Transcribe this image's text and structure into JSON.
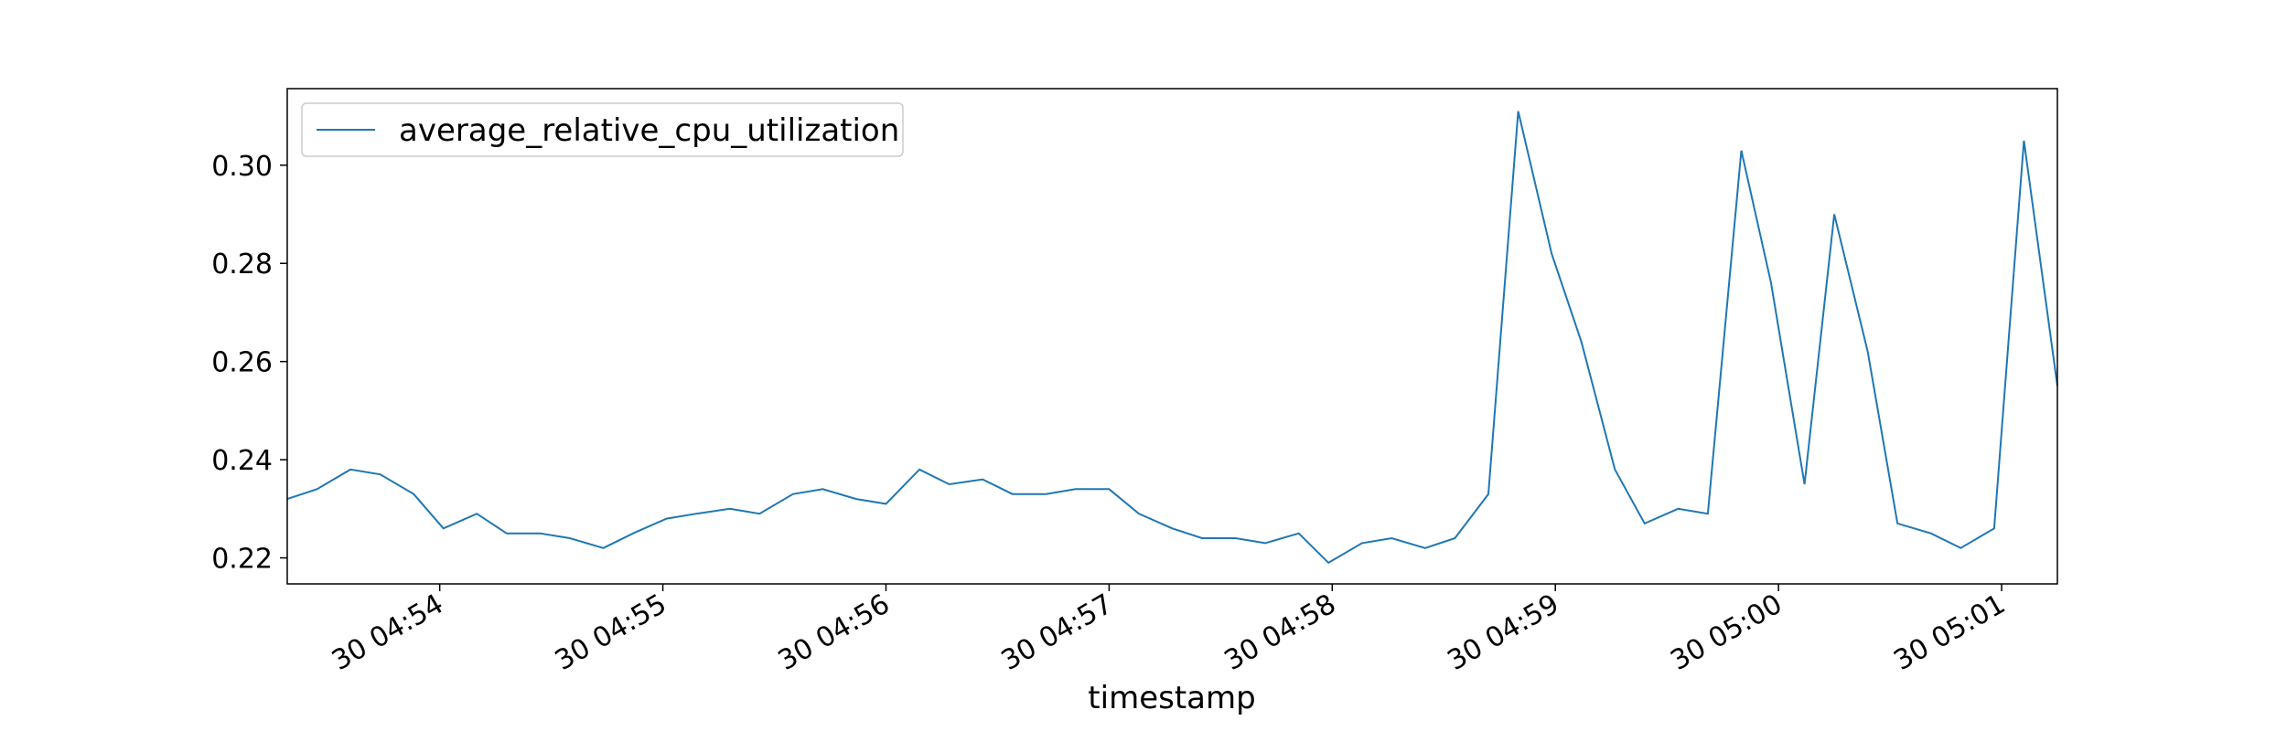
{
  "chart_data": {
    "type": "line",
    "xlabel": "timestamp",
    "x": [
      "30 04:53:19",
      "30 04:53:27",
      "30 04:53:36",
      "30 04:53:44",
      "30 04:53:53",
      "30 04:54:01",
      "30 04:54:10",
      "30 04:54:18",
      "30 04:54:27",
      "30 04:54:35",
      "30 04:54:44",
      "30 04:54:52",
      "30 04:55:01",
      "30 04:55:09",
      "30 04:55:18",
      "30 04:55:26",
      "30 04:55:35",
      "30 04:55:43",
      "30 04:55:52",
      "30 04:56:00",
      "30 04:56:09",
      "30 04:56:17",
      "30 04:56:26",
      "30 04:56:34",
      "30 04:56:43",
      "30 04:56:51",
      "30 04:57:00",
      "30 04:57:08",
      "30 04:57:17",
      "30 04:57:25",
      "30 04:57:34",
      "30 04:57:42",
      "30 04:57:51",
      "30 04:57:59",
      "30 04:58:08",
      "30 04:58:16",
      "30 04:58:25",
      "30 04:58:33",
      "30 04:58:42",
      "30 04:58:50",
      "30 04:58:59",
      "30 04:59:07",
      "30 04:59:16",
      "30 04:59:24",
      "30 04:59:33",
      "30 04:59:41",
      "30 04:59:50",
      "30 04:59:58",
      "30 05:00:07",
      "30 05:00:15",
      "30 05:00:24",
      "30 05:00:32",
      "30 05:00:41",
      "30 05:00:49",
      "30 05:00:58",
      "30 05:01:06",
      "30 05:01:15"
    ],
    "series": [
      {
        "name": "average_relative_cpu_utilization",
        "color": "#1f77b4",
        "values": [
          0.232,
          0.234,
          0.238,
          0.237,
          0.233,
          0.226,
          0.229,
          0.225,
          0.225,
          0.224,
          0.222,
          0.225,
          0.228,
          0.229,
          0.23,
          0.229,
          0.233,
          0.234,
          0.232,
          0.231,
          0.238,
          0.235,
          0.236,
          0.233,
          0.233,
          0.234,
          0.234,
          0.229,
          0.226,
          0.224,
          0.224,
          0.223,
          0.225,
          0.219,
          0.223,
          0.224,
          0.222,
          0.224,
          0.233,
          0.311,
          0.282,
          0.264,
          0.238,
          0.227,
          0.23,
          0.229,
          0.303,
          0.276,
          0.235,
          0.29,
          0.262,
          0.227,
          0.225,
          0.222,
          0.226,
          0.305,
          0.255
        ]
      }
    ],
    "xlim": [
      "30 04:53:19",
      "30 05:01:15"
    ],
    "xticks": [
      "30 04:54",
      "30 04:55",
      "30 04:56",
      "30 04:57",
      "30 04:58",
      "30 04:59",
      "30 05:00",
      "30 05:01"
    ],
    "ylim": [
      0.2147,
      0.3156
    ],
    "yticks": [
      0.22,
      0.24,
      0.26,
      0.28,
      {
        "value": 0.3,
        "label": "0.30"
      }
    ],
    "legend": "upper left",
    "grid": false
  }
}
